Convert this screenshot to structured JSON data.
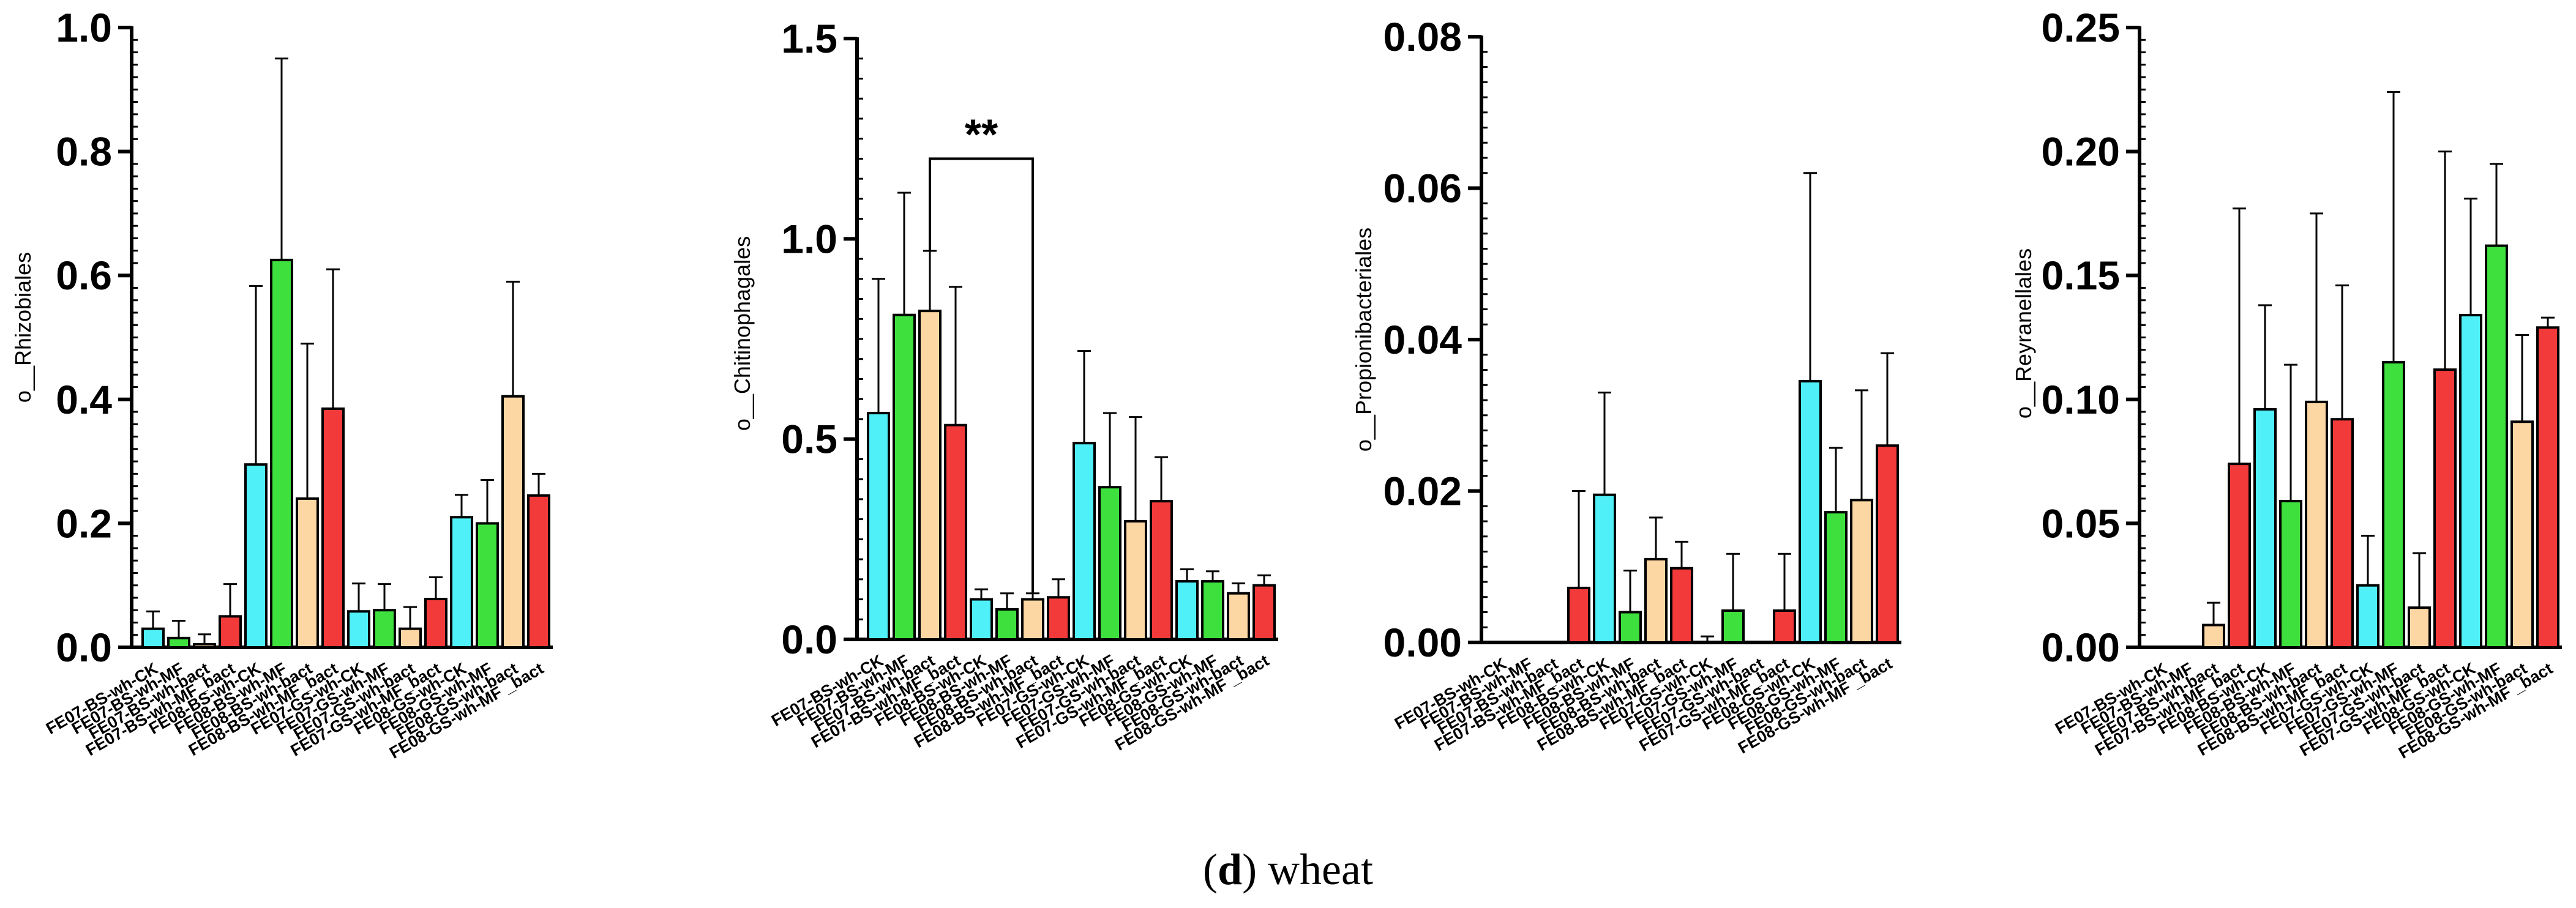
{
  "caption": {
    "letter": "d",
    "open": "(",
    "close": ")",
    "text": " wheat"
  },
  "colors": {
    "CK": "#4FF0F7",
    "MF": "#3EE03E",
    "bact": "#FCD7A3",
    "MF_bact": "#F23A3A",
    "axis": "#000000"
  },
  "chart_data": [
    {
      "type": "bar",
      "ylabel": "o__Rhizobiales",
      "ylim": [
        0,
        1.0
      ],
      "yticks": [
        "0.0",
        "0.2",
        "0.4",
        "0.6",
        "0.8",
        "1.0"
      ],
      "categories": [
        "FE07-BS-wh-CK",
        "FE07-BS-wh-MF",
        "FE07-BS-wh-bact",
        "FE07-BS-wh-MF_bact",
        "FE08-BS-wh-CK",
        "FE08-BS-wh-MF",
        "FE08-BS-wh-bact",
        "FE08-BS-wh-MF_bact",
        "FE07-GS-wh-CK",
        "FE07-GS-wh-MF",
        "FE07-GS-wh-bact",
        "FE07-GS-wh-MF_bact",
        "FE08-GS-wh-CK",
        "FE08-GS-wh-MF",
        "FE08-GS-wh-bact",
        "FE08-GS-wh-MF _bact"
      ],
      "groups": [
        "CK",
        "MF",
        "bact",
        "MF_bact",
        "CK",
        "MF",
        "bact",
        "MF_bact",
        "CK",
        "MF",
        "bact",
        "MF_bact",
        "CK",
        "MF",
        "bact",
        "MF_bact"
      ],
      "values": [
        0.03,
        0.015,
        0.005,
        0.05,
        0.295,
        0.625,
        0.24,
        0.385,
        0.058,
        0.06,
        0.03,
        0.078,
        0.21,
        0.2,
        0.405,
        0.245
      ],
      "errors": [
        0.028,
        0.028,
        0.016,
        0.052,
        0.288,
        0.325,
        0.25,
        0.225,
        0.045,
        0.042,
        0.035,
        0.035,
        0.036,
        0.07,
        0.185,
        0.035
      ]
    },
    {
      "type": "bar",
      "ylabel": "o__Chitinophagales",
      "ylim": [
        0,
        1.5
      ],
      "yticks": [
        "0.0",
        "0.5",
        "1.0",
        "1.5"
      ],
      "categories": [
        "FE07-BS-wh-CK",
        "FE07-BS-wh-MF",
        "FE07-BS-wh-bact",
        "FE07-BS-wh-MF_bact",
        "FE08-BS-wh-CK",
        "FE08-BS-wh-MF",
        "FE08-BS-wh-bact",
        "FE08-BS-wh-MF_bact",
        "FE07-GS-wh-CK",
        "FE07-GS-wh-MF",
        "FE07-GS-wh-bact",
        "FE07-GS-wh-MF_bact",
        "FE08-GS-wh-CK",
        "FE08-GS-wh-MF",
        "FE08-GS-wh-bact",
        "FE08-GS-wh-MF _bact"
      ],
      "groups": [
        "CK",
        "MF",
        "bact",
        "MF_bact",
        "CK",
        "MF",
        "bact",
        "MF_bact",
        "CK",
        "MF",
        "bact",
        "MF_bact",
        "CK",
        "MF",
        "bact",
        "MF_bact"
      ],
      "values": [
        0.565,
        0.81,
        0.82,
        0.535,
        0.1,
        0.075,
        0.1,
        0.105,
        0.49,
        0.38,
        0.295,
        0.345,
        0.145,
        0.145,
        0.115,
        0.135
      ],
      "errors": [
        0.335,
        0.305,
        0.15,
        0.345,
        0.025,
        0.04,
        0.015,
        0.045,
        0.23,
        0.185,
        0.26,
        0.11,
        0.03,
        0.025,
        0.025,
        0.025
      ],
      "annotation": {
        "text": "**",
        "from": 2,
        "to": 6,
        "y": 1.2
      }
    },
    {
      "type": "bar",
      "ylabel": "o__Propionibacteriales",
      "ylim": [
        0,
        0.08
      ],
      "yticks": [
        "0.00",
        "0.02",
        "0.04",
        "0.06",
        "0.08"
      ],
      "categories": [
        "FE07-BS-wh-CK",
        "FE07-BS-wh-MF",
        "FE07-BS-wh-bact",
        "FE07-BS-wh-MF_bact",
        "FE08-BS-wh-CK",
        "FE08-BS-wh-MF",
        "FE08-BS-wh-bact",
        "FE08-BS-wh-MF_bact",
        "FE07-GS-wh-CK",
        "FE07-GS-wh-MF",
        "FE07-GS-wh-bact",
        "FE07-GS-wh-MF_bact",
        "FE08-GS-wh-CK",
        "FE08-GS-wh-MF",
        "FE08-GS-wh-bact",
        "FE08-GS-wh-MF _bact"
      ],
      "groups": [
        "CK",
        "MF",
        "bact",
        "MF_bact",
        "CK",
        "MF",
        "bact",
        "MF_bact",
        "CK",
        "MF",
        "bact",
        "MF_bact",
        "CK",
        "MF",
        "bact",
        "MF_bact"
      ],
      "values": [
        0.0,
        0.0,
        0.0,
        0.0072,
        0.0195,
        0.004,
        0.011,
        0.0098,
        0.0,
        0.0042,
        0.0,
        0.0042,
        0.0345,
        0.0172,
        0.0188,
        0.026
      ],
      "errors": [
        0.0,
        0.0,
        0.0,
        0.0128,
        0.0135,
        0.0055,
        0.0055,
        0.0035,
        0.0008,
        0.0075,
        0.0,
        0.0075,
        0.0275,
        0.0085,
        0.0145,
        0.0122
      ]
    },
    {
      "type": "bar",
      "ylabel": "o__Reyranellales",
      "ylim": [
        0,
        0.25
      ],
      "yticks": [
        "0.00",
        "0.05",
        "0.10",
        "0.15",
        "0.20",
        "0.25"
      ],
      "categories": [
        "FE07-BS-wh-CK",
        "FE07-BS-wh-MF",
        "FE07-BS-wh-bact",
        "FE07-BS-wh-MF_bact",
        "FE08-BS-wh-CK",
        "FE08-BS-wh-MF",
        "FE08-BS-wh-bact",
        "FE08-BS-wh-MF_bact",
        "FE07-GS-wh-CK",
        "FE07-GS-wh-MF",
        "FE07-GS-wh-bact",
        "FE07-GS-wh-MF_bact",
        "FE08-GS-wh-CK",
        "FE08-GS-wh-MF",
        "FE08-GS-wh-bact",
        "FE08-GS-wh-MF _bact"
      ],
      "groups": [
        "CK",
        "MF",
        "bact",
        "MF_bact",
        "CK",
        "MF",
        "bact",
        "MF_bact",
        "CK",
        "MF",
        "bact",
        "MF_bact",
        "CK",
        "MF",
        "bact",
        "MF_bact"
      ],
      "values": [
        0.0,
        0.0,
        0.009,
        0.074,
        0.096,
        0.059,
        0.099,
        0.092,
        0.025,
        0.115,
        0.016,
        0.112,
        0.134,
        0.162,
        0.091,
        0.129
      ],
      "errors": [
        0.0,
        0.0,
        0.009,
        0.103,
        0.042,
        0.055,
        0.076,
        0.054,
        0.02,
        0.109,
        0.022,
        0.088,
        0.047,
        0.033,
        0.035,
        0.004
      ]
    }
  ]
}
